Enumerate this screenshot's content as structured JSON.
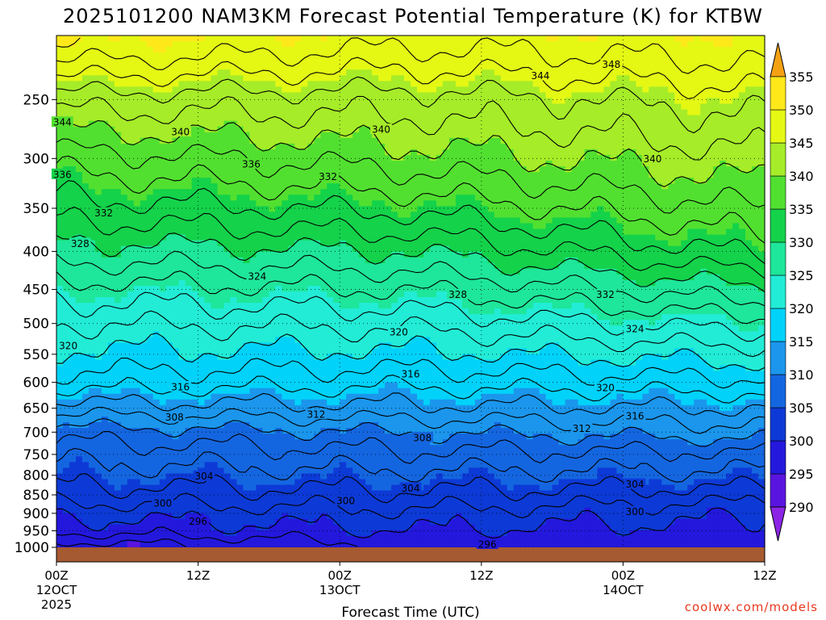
{
  "chart_data": {
    "type": "heatmap",
    "title": "2025101200 NAM3KM Forecast Potential Temperature (K) for KTBW",
    "xlabel": "Forecast Time (UTC)",
    "ylabel": "",
    "x_range_hours": [
      0,
      60
    ],
    "x_ticks": [
      {
        "hour": 0,
        "time": "00Z",
        "date": "12OCT",
        "year": "2025"
      },
      {
        "hour": 12,
        "time": "12Z",
        "date": "",
        "year": ""
      },
      {
        "hour": 24,
        "time": "00Z",
        "date": "13OCT",
        "year": ""
      },
      {
        "hour": 36,
        "time": "12Z",
        "date": "",
        "year": ""
      },
      {
        "hour": 48,
        "time": "00Z",
        "date": "14OCT",
        "year": ""
      },
      {
        "hour": 60,
        "time": "12Z",
        "date": "",
        "year": ""
      }
    ],
    "y_axis": "pressure (hPa), log scale, inverted",
    "ylim": [
      1000,
      205
    ],
    "pressure_ticks": [
      250,
      300,
      350,
      400,
      450,
      500,
      550,
      600,
      650,
      700,
      750,
      800,
      850,
      900,
      950,
      1000
    ],
    "colorbar": {
      "ticks": [
        290,
        295,
        300,
        305,
        310,
        315,
        320,
        325,
        330,
        335,
        340,
        345,
        350,
        355
      ],
      "bins": [
        {
          "min": 285,
          "max": 290,
          "color": "#8c24e6"
        },
        {
          "min": 290,
          "max": 295,
          "color": "#5a14e0"
        },
        {
          "min": 295,
          "max": 300,
          "color": "#2318dc"
        },
        {
          "min": 300,
          "max": 305,
          "color": "#0d3ad6"
        },
        {
          "min": 305,
          "max": 310,
          "color": "#1466e0"
        },
        {
          "min": 310,
          "max": 315,
          "color": "#1b96ec"
        },
        {
          "min": 315,
          "max": 320,
          "color": "#00d2fa"
        },
        {
          "min": 320,
          "max": 325,
          "color": "#22ecd6"
        },
        {
          "min": 325,
          "max": 330,
          "color": "#1ee69a"
        },
        {
          "min": 330,
          "max": 335,
          "color": "#14d24a"
        },
        {
          "min": 335,
          "max": 340,
          "color": "#52e030"
        },
        {
          "min": 340,
          "max": 345,
          "color": "#a6ec28"
        },
        {
          "min": 345,
          "max": 350,
          "color": "#e4f814"
        },
        {
          "min": 350,
          "max": 355,
          "color": "#ffe81a"
        },
        {
          "min": 355,
          "max": 360,
          "color": "#f4a214"
        }
      ]
    },
    "contour_interval_K": 2,
    "contour_levels": [
      296,
      298,
      300,
      302,
      304,
      306,
      308,
      310,
      312,
      314,
      316,
      318,
      320,
      322,
      324,
      326,
      328,
      330,
      332,
      334,
      336,
      338,
      340,
      342,
      344,
      346,
      348,
      350,
      352
    ],
    "profile_reference": {
      "description": "Approximate theta (K) at sampled pressures; 3 columns of values for forecast hours 0, 30 and 60",
      "pressure_levels": [
        1000,
        950,
        900,
        850,
        800,
        750,
        700,
        650,
        600,
        550,
        500,
        450,
        400,
        350,
        300,
        250,
        205
      ],
      "theta_hour0": [
        294.5,
        298.5,
        300.5,
        303,
        305,
        306.5,
        309,
        313,
        317,
        319.5,
        322,
        325,
        329,
        333,
        337,
        343,
        351
      ],
      "theta_hour30": [
        297.5,
        300,
        301.5,
        303.5,
        305.5,
        307.5,
        310,
        313.5,
        316.5,
        319.5,
        322.5,
        326,
        330,
        334.5,
        339,
        343,
        349
      ],
      "theta_hour60": [
        296,
        299,
        300.5,
        303,
        305.5,
        307.5,
        311,
        314,
        317.5,
        321,
        325,
        329.5,
        334.5,
        338,
        341.5,
        345,
        350
      ]
    },
    "contour_label_positions": [
      {
        "hour": 0.5,
        "p": 268,
        "label": "344"
      },
      {
        "hour": 0.5,
        "p": 315,
        "label": "336"
      },
      {
        "hour": 4,
        "p": 355,
        "label": "332"
      },
      {
        "hour": 2,
        "p": 390,
        "label": "328"
      },
      {
        "hour": 1,
        "p": 535,
        "label": "320"
      },
      {
        "hour": 10.5,
        "p": 608,
        "label": "316"
      },
      {
        "hour": 10,
        "p": 668,
        "label": "308"
      },
      {
        "hour": 12.5,
        "p": 802,
        "label": "304"
      },
      {
        "hour": 9,
        "p": 872,
        "label": "300"
      },
      {
        "hour": 12,
        "p": 922,
        "label": "296"
      },
      {
        "hour": 10.5,
        "p": 276,
        "label": "340"
      },
      {
        "hour": 16.5,
        "p": 305,
        "label": "336"
      },
      {
        "hour": 23,
        "p": 317,
        "label": "332"
      },
      {
        "hour": 17,
        "p": 432,
        "label": "324"
      },
      {
        "hour": 27.5,
        "p": 274,
        "label": "340"
      },
      {
        "hour": 41,
        "p": 232,
        "label": "344"
      },
      {
        "hour": 47,
        "p": 224,
        "label": "348"
      },
      {
        "hour": 34,
        "p": 457,
        "label": "328"
      },
      {
        "hour": 29,
        "p": 513,
        "label": "320"
      },
      {
        "hour": 30,
        "p": 584,
        "label": "316"
      },
      {
        "hour": 22,
        "p": 662,
        "label": "312"
      },
      {
        "hour": 31,
        "p": 712,
        "label": "308"
      },
      {
        "hour": 30,
        "p": 832,
        "label": "304"
      },
      {
        "hour": 24.5,
        "p": 865,
        "label": "300"
      },
      {
        "hour": 36.5,
        "p": 990,
        "label": "296"
      },
      {
        "hour": 50.5,
        "p": 300,
        "label": "340"
      },
      {
        "hour": 46.5,
        "p": 457,
        "label": "332"
      },
      {
        "hour": 49,
        "p": 508,
        "label": "324"
      },
      {
        "hour": 46.5,
        "p": 610,
        "label": "320"
      },
      {
        "hour": 49,
        "p": 665,
        "label": "316"
      },
      {
        "hour": 44.5,
        "p": 692,
        "label": "312"
      },
      {
        "hour": 49,
        "p": 822,
        "label": "304"
      },
      {
        "hour": 49,
        "p": 895,
        "label": "300"
      }
    ],
    "ground_color": "#a65a32"
  },
  "credit": "coolwx.com/models"
}
